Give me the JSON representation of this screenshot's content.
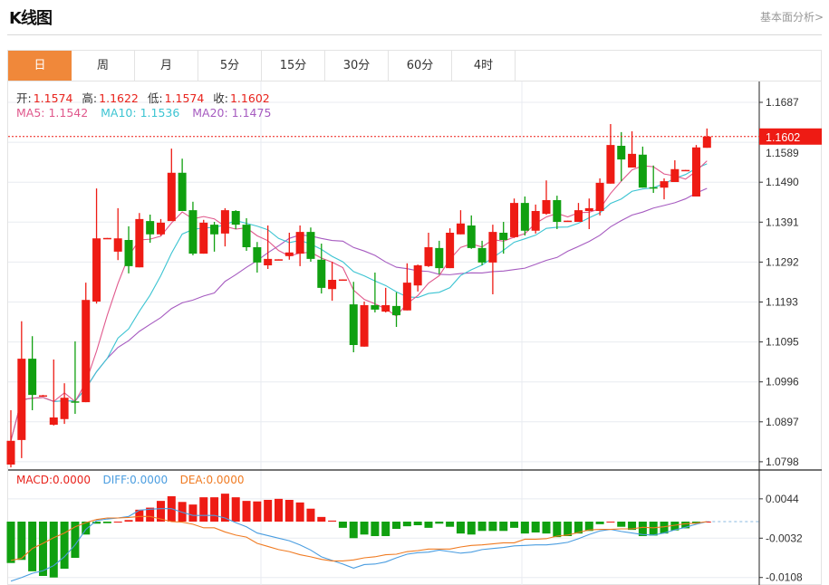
{
  "header": {
    "title": "K线图",
    "link": "基本面分析>"
  },
  "tabs": [
    {
      "label": "日",
      "active": true
    },
    {
      "label": "周"
    },
    {
      "label": "月"
    },
    {
      "label": "5分"
    },
    {
      "label": "15分"
    },
    {
      "label": "30分"
    },
    {
      "label": "60分"
    },
    {
      "label": "4时"
    }
  ],
  "ohlc_info": {
    "open_label": "开:",
    "open": "1.1574",
    "high_label": "高:",
    "high": "1.1622",
    "low_label": "低:",
    "low": "1.1574",
    "close_label": "收:",
    "close": "1.1602"
  },
  "ma_info": {
    "ma5": "MA5: 1.1542",
    "ma10": "MA10: 1.1536",
    "ma20": "MA20: 1.1475"
  },
  "macd_info": {
    "macd": "MACD:0.0000",
    "diff": "DIFF:0.0000",
    "dea": "DEA:0.0000"
  },
  "colors": {
    "up": "#ee1b14",
    "down": "#10a010",
    "ma5": "#e0588c",
    "ma10": "#3cc4d2",
    "ma20": "#a65bc0",
    "diff": "#4a9de0",
    "dea": "#f07b22",
    "accent": "#f0883a"
  },
  "chart_data": [
    {
      "type": "candlestick",
      "price_axis": {
        "ticks": [
          "1.1687",
          "1.1589",
          "1.1490",
          "1.1391",
          "1.1292",
          "1.1193",
          "1.1095",
          "1.0996",
          "1.0897",
          "1.0798"
        ],
        "range": [
          1.0798,
          1.1687
        ]
      },
      "last_price": "1.1602",
      "candles": [
        [
          1.0787,
          1.0922,
          1.078,
          1.0846
        ],
        [
          1.0848,
          1.1143,
          1.0803,
          1.105
        ],
        [
          1.105,
          1.1106,
          1.0922,
          1.096
        ],
        [
          1.0958,
          1.096,
          1.0957,
          1.0959
        ],
        [
          1.0886,
          1.1048,
          1.0884,
          1.0904
        ],
        [
          1.09,
          1.0989,
          1.0888,
          1.0953
        ],
        [
          1.0944,
          1.1093,
          1.0913,
          1.0942
        ],
        [
          1.0942,
          1.1239,
          1.0942,
          1.1196
        ],
        [
          1.1192,
          1.1473,
          1.1187,
          1.1349
        ],
        [
          1.1349,
          1.135,
          1.1349,
          1.135
        ],
        [
          1.1316,
          1.1424,
          1.1295,
          1.1349
        ],
        [
          1.1345,
          1.1379,
          1.1262,
          1.128
        ],
        [
          1.1277,
          1.1412,
          1.1277,
          1.1397
        ],
        [
          1.1392,
          1.1408,
          1.1338,
          1.1359
        ],
        [
          1.1359,
          1.1397,
          1.1356,
          1.1388
        ],
        [
          1.1392,
          1.1572,
          1.1392,
          1.1512
        ],
        [
          1.1512,
          1.1547,
          1.1417,
          1.1417
        ],
        [
          1.1419,
          1.144,
          1.1307,
          1.1311
        ],
        [
          1.1311,
          1.1395,
          1.1311,
          1.1388
        ],
        [
          1.1383,
          1.139,
          1.1316,
          1.1359
        ],
        [
          1.1361,
          1.1424,
          1.1329,
          1.1419
        ],
        [
          1.1417,
          1.1419,
          1.1372,
          1.1383
        ],
        [
          1.1383,
          1.1399,
          1.1318,
          1.1327
        ],
        [
          1.1327,
          1.134,
          1.1264,
          1.1289
        ],
        [
          1.1282,
          1.1381,
          1.1273,
          1.1298
        ],
        [
          1.1296,
          1.1297,
          1.1296,
          1.1297
        ],
        [
          1.1305,
          1.1363,
          1.1296,
          1.1314
        ],
        [
          1.1311,
          1.1381,
          1.128,
          1.1365
        ],
        [
          1.1365,
          1.1376,
          1.1291,
          1.1298
        ],
        [
          1.1296,
          1.1336,
          1.1212,
          1.1226
        ],
        [
          1.1223,
          1.1291,
          1.1194,
          1.1246
        ],
        [
          1.1246,
          1.1247,
          1.1246,
          1.1247
        ],
        [
          1.1185,
          1.1241,
          1.1066,
          1.1084
        ],
        [
          1.108,
          1.1192,
          1.108,
          1.1183
        ],
        [
          1.1183,
          1.1264,
          1.1165,
          1.1172
        ],
        [
          1.1167,
          1.1226,
          1.1165,
          1.1183
        ],
        [
          1.1181,
          1.1215,
          1.1129,
          1.1158
        ],
        [
          1.117,
          1.1287,
          1.117,
          1.1239
        ],
        [
          1.1232,
          1.1284,
          1.1217,
          1.1282
        ],
        [
          1.128,
          1.1363,
          1.1278,
          1.1327
        ],
        [
          1.1325,
          1.1343,
          1.126,
          1.1275
        ],
        [
          1.1275,
          1.1374,
          1.1275,
          1.1363
        ],
        [
          1.1359,
          1.1419,
          1.1359,
          1.1386
        ],
        [
          1.1381,
          1.1406,
          1.1323,
          1.1325
        ],
        [
          1.1325,
          1.1343,
          1.1282,
          1.1289
        ],
        [
          1.1289,
          1.1383,
          1.121,
          1.1365
        ],
        [
          1.1363,
          1.139,
          1.1311,
          1.1345
        ],
        [
          1.1352,
          1.1448,
          1.135,
          1.1437
        ],
        [
          1.1437,
          1.1453,
          1.1356,
          1.1368
        ],
        [
          1.1368,
          1.1433,
          1.1361,
          1.1417
        ],
        [
          1.141,
          1.1493,
          1.1408,
          1.1444
        ],
        [
          1.1444,
          1.1455,
          1.1372,
          1.139
        ],
        [
          1.1392,
          1.1393,
          1.1392,
          1.1393
        ],
        [
          1.139,
          1.1437,
          1.139,
          1.1419
        ],
        [
          1.1417,
          1.1448,
          1.1372,
          1.1424
        ],
        [
          1.1417,
          1.1498,
          1.1406,
          1.1487
        ],
        [
          1.1485,
          1.1633,
          1.1485,
          1.1581
        ],
        [
          1.1579,
          1.1613,
          1.1491,
          1.1545
        ],
        [
          1.1525,
          1.1615,
          1.1525,
          1.1559
        ],
        [
          1.1557,
          1.1577,
          1.1475,
          1.1475
        ],
        [
          1.1476,
          1.153,
          1.1462,
          1.1475
        ],
        [
          1.1475,
          1.1498,
          1.1446,
          1.1491
        ],
        [
          1.1489,
          1.1543,
          1.1489,
          1.1521
        ],
        [
          1.1518,
          1.1519,
          1.1518,
          1.1519
        ],
        [
          1.1453,
          1.1581,
          1.1453,
          1.1575
        ],
        [
          1.1574,
          1.1622,
          1.1574,
          1.1602
        ]
      ],
      "candle_fields": [
        "open",
        "high",
        "low",
        "close"
      ],
      "series": [
        "MA5",
        "MA10",
        "MA20"
      ]
    },
    {
      "type": "bar+line",
      "axis": {
        "ticks": [
          "0.0044",
          "-0.0032",
          "-0.0108"
        ],
        "range": [
          -0.0115,
          0.006
        ]
      },
      "macd": [
        -0.008,
        -0.0074,
        -0.0096,
        -0.0105,
        -0.0108,
        -0.0091,
        -0.007,
        -0.0025,
        -0.0004,
        -0.0003,
        0.0,
        0.0003,
        0.0023,
        0.0027,
        0.004,
        0.0049,
        0.0038,
        0.0033,
        0.0047,
        0.0047,
        0.0054,
        0.0047,
        0.004,
        0.0039,
        0.0042,
        0.0044,
        0.0042,
        0.0037,
        0.0025,
        0.0009,
        0.0002,
        -0.0012,
        -0.0032,
        -0.0025,
        -0.0028,
        -0.0028,
        -0.0014,
        -0.0009,
        -0.0007,
        -0.0012,
        -0.0004,
        -0.001,
        -0.0023,
        -0.0025,
        -0.0018,
        -0.0018,
        -0.0018,
        -0.0012,
        -0.0023,
        -0.0021,
        -0.0023,
        -0.003,
        -0.0028,
        -0.0023,
        -0.0018,
        -0.0005,
        0.0,
        -0.001,
        -0.0016,
        -0.0028,
        -0.0027,
        -0.0023,
        -0.0017,
        -0.0013,
        -0.0004,
        0.0
      ],
      "diff": [
        -0.0115,
        -0.0108,
        -0.01,
        -0.0095,
        -0.0085,
        -0.0068,
        -0.0045,
        -0.0015,
        0.0002,
        0.0005,
        0.0007,
        0.001,
        0.0022,
        0.0024,
        0.0025,
        0.0025,
        0.0018,
        0.0012,
        0.0012,
        0.0012,
        0.0007,
        -0.0002,
        -0.001,
        -0.0022,
        -0.0027,
        -0.0032,
        -0.0037,
        -0.0045,
        -0.0055,
        -0.0068,
        -0.0075,
        -0.0082,
        -0.009,
        -0.0083,
        -0.0082,
        -0.0078,
        -0.007,
        -0.0063,
        -0.006,
        -0.0059,
        -0.0055,
        -0.0058,
        -0.0061,
        -0.0059,
        -0.0054,
        -0.0052,
        -0.005,
        -0.0047,
        -0.0046,
        -0.0045,
        -0.0045,
        -0.0043,
        -0.004,
        -0.0033,
        -0.0025,
        -0.0018,
        -0.0015,
        -0.0019,
        -0.0022,
        -0.0025,
        -0.0026,
        -0.0022,
        -0.0016,
        -0.0011,
        -0.0005,
        0.0
      ],
      "dea": [
        -0.0075,
        -0.0071,
        -0.0052,
        -0.0042,
        -0.0031,
        -0.0022,
        -0.001,
        -0.0002,
        0.0004,
        0.0007,
        0.0007,
        0.0008,
        0.001,
        0.001,
        0.0005,
        0.0,
        -0.0001,
        -0.0005,
        -0.0012,
        -0.0012,
        -0.002,
        -0.0026,
        -0.003,
        -0.0042,
        -0.0048,
        -0.0054,
        -0.0058,
        -0.0064,
        -0.0068,
        -0.0073,
        -0.0076,
        -0.0076,
        -0.0074,
        -0.007,
        -0.0068,
        -0.0064,
        -0.0063,
        -0.0058,
        -0.0056,
        -0.0053,
        -0.0053,
        -0.0053,
        -0.0049,
        -0.0046,
        -0.0045,
        -0.0043,
        -0.0041,
        -0.0041,
        -0.0034,
        -0.0034,
        -0.0033,
        -0.0028,
        -0.0026,
        -0.0021,
        -0.0016,
        -0.0015,
        -0.0015,
        -0.0014,
        -0.0014,
        -0.0011,
        -0.0012,
        -0.001,
        -0.0007,
        -0.0004,
        -0.0003,
        0.0
      ]
    }
  ]
}
